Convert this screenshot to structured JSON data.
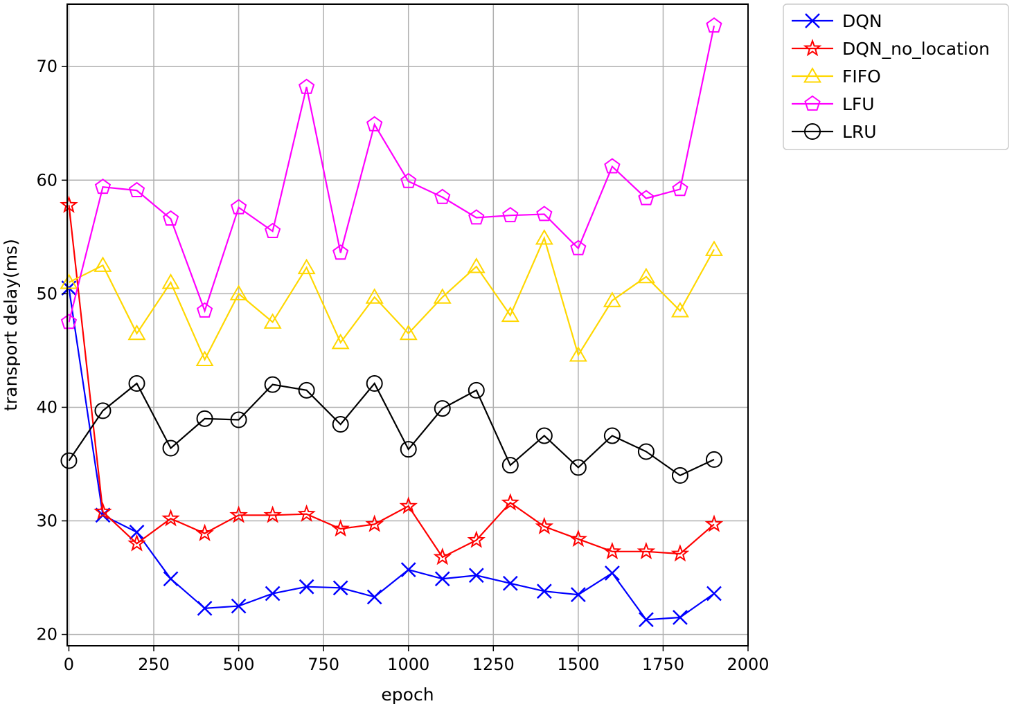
{
  "chart_data": {
    "type": "line",
    "xlabel": "epoch",
    "ylabel": "transport delay(ms)",
    "xlim": [
      -5,
      2000
    ],
    "ylim": [
      19,
      75.5
    ],
    "xticks": [
      0,
      250,
      500,
      750,
      1000,
      1250,
      1500,
      1750,
      2000
    ],
    "yticks": [
      20,
      30,
      40,
      50,
      60,
      70
    ],
    "grid": true,
    "legend_position": "outside-top-right",
    "x": [
      0,
      100,
      200,
      300,
      400,
      500,
      600,
      700,
      800,
      900,
      1000,
      1100,
      1200,
      1300,
      1400,
      1500,
      1600,
      1700,
      1800,
      1900
    ],
    "series": [
      {
        "name": "DQN",
        "color": "#0000ff",
        "marker": "x",
        "values": [
          50.5,
          30.5,
          29.0,
          24.9,
          22.3,
          22.5,
          23.6,
          24.2,
          24.1,
          23.3,
          25.7,
          24.9,
          25.2,
          24.5,
          23.8,
          23.5,
          25.4,
          21.3,
          21.5,
          23.6
        ]
      },
      {
        "name": "DQN_no_location",
        "color": "#ff0000",
        "marker": "star",
        "values": [
          57.8,
          30.8,
          28.0,
          30.2,
          28.9,
          30.5,
          30.5,
          30.6,
          29.3,
          29.7,
          31.3,
          26.8,
          28.3,
          31.6,
          29.5,
          28.4,
          27.3,
          27.3,
          27.1,
          29.7
        ]
      },
      {
        "name": "FIFO",
        "color": "#ffd700",
        "marker": "triangle",
        "values": [
          51.0,
          52.5,
          46.5,
          51.0,
          44.2,
          50.0,
          47.5,
          52.3,
          45.7,
          49.7,
          46.5,
          49.7,
          52.4,
          48.1,
          54.9,
          44.6,
          49.4,
          51.5,
          48.5,
          53.9
        ]
      },
      {
        "name": "LFU",
        "color": "#ff00ff",
        "marker": "pentagon",
        "values": [
          47.5,
          59.4,
          59.1,
          56.6,
          48.5,
          57.6,
          55.5,
          68.2,
          53.6,
          64.9,
          59.9,
          58.5,
          56.7,
          56.9,
          57.0,
          54.0,
          61.2,
          58.4,
          59.2,
          73.6
        ]
      },
      {
        "name": "LRU",
        "color": "#000000",
        "marker": "circle",
        "values": [
          35.3,
          39.7,
          42.1,
          36.4,
          39.0,
          38.9,
          42.0,
          41.5,
          38.5,
          42.1,
          36.3,
          39.9,
          41.5,
          34.9,
          37.5,
          34.7,
          37.5,
          36.1,
          34.0,
          35.4
        ]
      }
    ]
  }
}
